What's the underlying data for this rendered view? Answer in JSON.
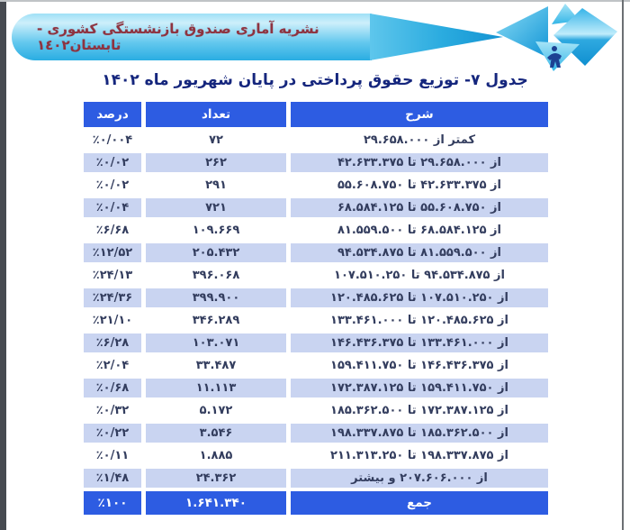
{
  "banner": {
    "title": "نشریه آماری صندوق بازنشستگی کشوری - تابستان١٤٠٢"
  },
  "page_title": "جدول ۷- توزیع حقوق پرداختی در پایان شهریور ماه ۱۴۰۲",
  "table": {
    "columns": {
      "desc": "شرح",
      "count": "تعداد",
      "percent": "درصد"
    },
    "rows": [
      {
        "desc": "کمتر از ۲۹.۶۵۸.۰۰۰",
        "count": "۷۲",
        "percent": "٪۰/۰۰۴"
      },
      {
        "desc": "از ۲۹.۶۵۸.۰۰۰ تا ۴۲.۶۳۳.۳۷۵",
        "count": "۲۶۲",
        "percent": "٪۰/۰۲"
      },
      {
        "desc": "از ۴۲.۶۳۳.۳۷۵ تا ۵۵.۶۰۸.۷۵۰",
        "count": "۲۹۱",
        "percent": "٪۰/۰۲"
      },
      {
        "desc": "از ۵۵.۶۰۸.۷۵۰ تا ۶۸.۵۸۴.۱۲۵",
        "count": "۷۲۱",
        "percent": "٪۰/۰۴"
      },
      {
        "desc": "از ۶۸.۵۸۴.۱۲۵ تا ۸۱.۵۵۹.۵۰۰",
        "count": "۱۰۹.۶۶۹",
        "percent": "٪۶/۶۸"
      },
      {
        "desc": "از ۸۱.۵۵۹.۵۰۰ تا ۹۴.۵۳۴.۸۷۵",
        "count": "۲۰۵.۴۳۲",
        "percent": "٪۱۲/۵۲"
      },
      {
        "desc": "از ۹۴.۵۳۴.۸۷۵ تا ۱۰۷.۵۱۰.۲۵۰",
        "count": "۳۹۶.۰۶۸",
        "percent": "٪۲۴/۱۳"
      },
      {
        "desc": "از ۱۰۷.۵۱۰.۲۵۰ تا ۱۲۰.۴۸۵.۶۲۵",
        "count": "۳۹۹.۹۰۰",
        "percent": "٪۲۴/۳۶"
      },
      {
        "desc": "از ۱۲۰.۴۸۵.۶۲۵ تا ۱۳۳.۴۶۱.۰۰۰",
        "count": "۳۴۶.۲۸۹",
        "percent": "٪۲۱/۱۰"
      },
      {
        "desc": "از ۱۳۳.۴۶۱.۰۰۰ تا ۱۴۶.۴۳۶.۳۷۵",
        "count": "۱۰۳.۰۷۱",
        "percent": "٪۶/۲۸"
      },
      {
        "desc": "از ۱۴۶.۴۳۶.۳۷۵ تا ۱۵۹.۴۱۱.۷۵۰",
        "count": "۳۳.۴۸۷",
        "percent": "٪۲/۰۴"
      },
      {
        "desc": "از ۱۵۹.۴۱۱.۷۵۰ تا ۱۷۲.۳۸۷.۱۲۵",
        "count": "۱۱.۱۱۳",
        "percent": "٪۰/۶۸"
      },
      {
        "desc": "از ۱۷۲.۳۸۷.۱۲۵ تا ۱۸۵.۳۶۲.۵۰۰",
        "count": "۵.۱۷۲",
        "percent": "٪۰/۳۲"
      },
      {
        "desc": "از ۱۸۵.۳۶۲.۵۰۰ تا ۱۹۸.۳۳۷.۸۷۵",
        "count": "۳.۵۴۶",
        "percent": "٪۰/۲۲"
      },
      {
        "desc": "از ۱۹۸.۳۳۷.۸۷۵ تا ۲۱۱.۳۱۳.۲۵۰",
        "count": "۱.۸۸۵",
        "percent": "٪۰/۱۱"
      },
      {
        "desc": "از ۲۰۷.۶۰۶.۰۰۰ و بیشتر",
        "count": "۲۴.۳۶۲",
        "percent": "٪۱/۴۸"
      }
    ],
    "total": {
      "desc": "جمع",
      "count": "۱.۶۴۱.۳۴۰",
      "percent": "٪۱۰۰"
    }
  },
  "colors": {
    "header_blue": "#2d5ce2",
    "row_alt_blue": "#c9d4f1",
    "banner_light": "#9fe0f6",
    "banner_deep": "#1493d2",
    "banner_text_maroon": "#8e3340",
    "title_navy": "#15267d",
    "body_text": "#333d5e"
  }
}
